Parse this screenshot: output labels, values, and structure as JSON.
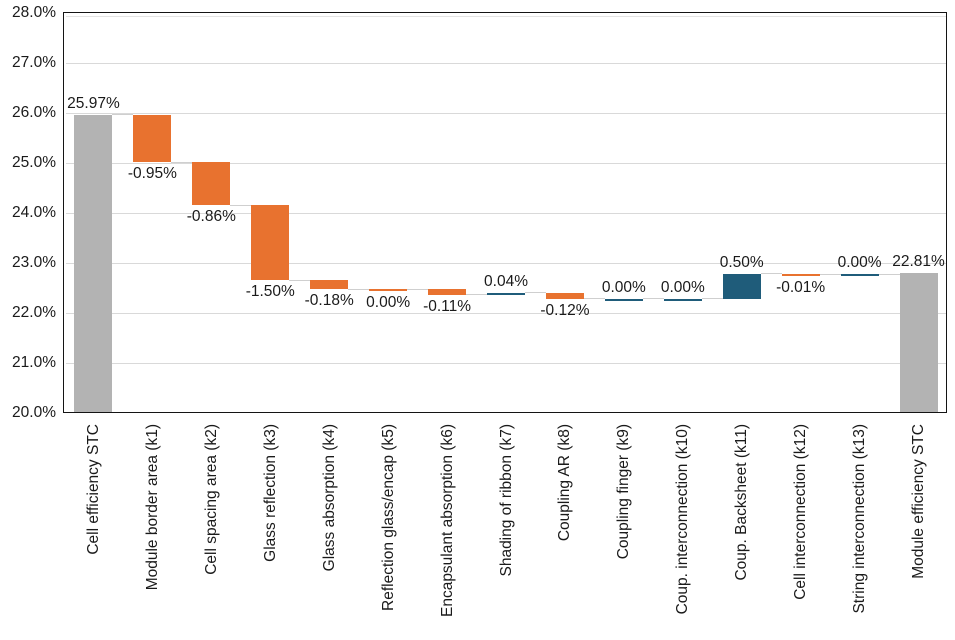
{
  "chart_data": {
    "type": "waterfall",
    "title": "",
    "xlabel": "",
    "ylabel": "",
    "y_axis": {
      "min": 20,
      "max": 28,
      "step": 1,
      "format": "percent",
      "tick_labels": [
        "28.0%",
        "27.0%",
        "26.0%",
        "25.0%",
        "24.0%",
        "23.0%",
        "22.0%",
        "21.0%",
        "20.0%"
      ]
    },
    "grid": true,
    "legend": false,
    "steps": [
      {
        "label": "Cell efficiency STC",
        "value": 25.97,
        "display": "25.97%",
        "kind": "total"
      },
      {
        "label": "Module border area (k1)",
        "value": -0.95,
        "display": "-0.95%",
        "kind": "decrease"
      },
      {
        "label": "Cell spacing area (k2)",
        "value": -0.86,
        "display": "-0.86%",
        "kind": "decrease"
      },
      {
        "label": "Glass reflection (k3)",
        "value": -1.5,
        "display": "-1.50%",
        "kind": "decrease"
      },
      {
        "label": "Glass absorption (k4)",
        "value": -0.18,
        "display": "-0.18%",
        "kind": "decrease"
      },
      {
        "label": "Reflection glass/encap (k5)",
        "value": 0.0,
        "display": "0.00%",
        "kind": "decrease"
      },
      {
        "label": "Encapsulant absorption (k6)",
        "value": -0.11,
        "display": "-0.11%",
        "kind": "decrease"
      },
      {
        "label": "Shading of ribbon (k7)",
        "value": 0.04,
        "display": "0.04%",
        "kind": "increase"
      },
      {
        "label": "Coupling AR (k8)",
        "value": -0.12,
        "display": "-0.12%",
        "kind": "decrease"
      },
      {
        "label": "Coupling finger (k9)",
        "value": 0.0,
        "display": "0.00%",
        "kind": "increase"
      },
      {
        "label": "Coup. interconnection (k10)",
        "value": 0.0,
        "display": "0.00%",
        "kind": "increase"
      },
      {
        "label": "Coup. Backsheet (k11)",
        "value": 0.5,
        "display": "0.50%",
        "kind": "increase"
      },
      {
        "label": "Cell interconnection (k12)",
        "value": -0.01,
        "display": "-0.01%",
        "kind": "decrease"
      },
      {
        "label": "String interconnection (k13)",
        "value": 0.0,
        "display": "0.00%",
        "kind": "increase"
      },
      {
        "label": "Module efficiency STC",
        "value": 22.81,
        "display": "22.81%",
        "kind": "total"
      }
    ],
    "colors": {
      "total": "#b3b3b3",
      "decrease": "#e8722f",
      "increase": "#1f5c7a",
      "gridline": "#d9d9d9",
      "connector": "#cfcfcf",
      "axis_border": "#141414",
      "text": "#1a1a1a",
      "background": "#ffffff"
    }
  }
}
